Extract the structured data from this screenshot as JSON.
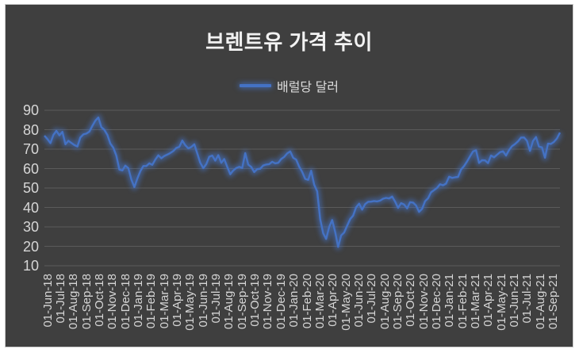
{
  "chart": {
    "title": "브렌트유 가격 추이",
    "legend": {
      "label": "배럴당 달러"
    },
    "colors": {
      "panel_background": "#3F3F3F",
      "panel_border": "#C9C9C9",
      "title_text": "#F2F2F2",
      "axis_text": "#D6D6D6",
      "gridline": "#5B5B5B",
      "series_line": "#4472C4",
      "series_glow": "#4472C4"
    }
  },
  "chart_data": {
    "type": "line",
    "title": "브렌트유 가격 추이",
    "xlabel": "",
    "ylabel": "",
    "ylim": [
      10,
      90
    ],
    "y_ticks": [
      90,
      80,
      70,
      60,
      50,
      40,
      30,
      20,
      10
    ],
    "grid": true,
    "legend_position": "top",
    "x_tick_label_rotation": -90,
    "categories": [
      "01-Jun-18",
      "01-Jul-18",
      "01-Aug-18",
      "01-Sep-18",
      "01-Oct-18",
      "01-Nov-18",
      "01-Dec-18",
      "01-Jan-19",
      "01-Feb-19",
      "01-Mar-19",
      "01-Apr-19",
      "01-May-19",
      "01-Jun-19",
      "01-Jul-19",
      "01-Aug-19",
      "01-Sep-19",
      "01-Oct-19",
      "01-Nov-19",
      "01-Dec-19",
      "01-Jan-20",
      "01-Feb-20",
      "01-Mar-20",
      "01-Apr-20",
      "01-May-20",
      "01-Jun-20",
      "01-Jul-20",
      "01-Aug-20",
      "01-Sep-20",
      "01-Oct-20",
      "01-Nov-20",
      "01-Dec-20",
      "01-Jan-21",
      "01-Feb-21",
      "01-Mar-21",
      "01-Apr-21",
      "01-May-21",
      "01-Jun-21",
      "01-Jul-21",
      "01-Aug-21",
      "01-Sep-21"
    ],
    "series": [
      {
        "name": "배럴당 달러",
        "color": "#4472C4",
        "values": [
          76.9,
          75.2,
          73.1,
          77.3,
          79.4,
          77.1,
          78.9,
          72.5,
          74.3,
          73.2,
          72.1,
          71.4,
          76.0,
          77.6,
          78.0,
          79.0,
          82.0,
          84.6,
          86.3,
          81.3,
          79.9,
          77.3,
          72.9,
          70.7,
          66.6,
          59.5,
          59.0,
          61.5,
          60.2,
          54.4,
          50.5,
          54.9,
          58.6,
          61.3,
          61.3,
          62.7,
          61.9,
          64.6,
          66.8,
          65.3,
          66.5,
          67.2,
          68.0,
          69.0,
          70.6,
          71.2,
          74.4,
          72.0,
          70.4,
          71.1,
          72.5,
          67.8,
          63.0,
          60.2,
          62.3,
          66.1,
          66.7,
          64.1,
          66.9,
          63.0,
          64.9,
          60.9,
          57.1,
          59.0,
          60.3,
          60.9,
          60.3,
          67.9,
          62.0,
          60.8,
          58.2,
          59.7,
          59.9,
          61.6,
          62.1,
          62.3,
          63.5,
          62.7,
          63.0,
          64.9,
          66.0,
          67.8,
          68.8,
          65.5,
          64.6,
          61.0,
          58.3,
          54.7,
          54.2,
          58.9,
          51.7,
          48.3,
          34.0,
          26.7,
          23.8,
          29.9,
          33.5,
          27.4,
          19.7,
          25.6,
          27.1,
          30.6,
          34.0,
          35.8,
          40.1,
          41.9,
          38.9,
          41.7,
          42.9,
          43.0,
          43.3,
          43.1,
          43.5,
          44.5,
          44.9,
          44.6,
          45.6,
          43.0,
          39.8,
          42.2,
          41.5,
          39.5,
          42.7,
          42.5,
          41.0,
          37.7,
          39.3,
          43.2,
          44.7,
          47.8,
          48.9,
          50.1,
          51.9,
          51.4,
          52.3,
          55.8,
          55.2,
          55.5,
          55.7,
          59.5,
          61.3,
          63.6,
          66.3,
          68.8,
          69.4,
          62.9,
          64.3,
          64.2,
          62.8,
          66.7,
          65.8,
          67.1,
          68.4,
          68.9,
          66.7,
          69.5,
          71.5,
          72.6,
          74.0,
          75.9,
          76.0,
          74.3,
          69.1,
          74.2,
          76.2,
          71.3,
          70.9,
          65.6,
          72.8,
          72.7,
          73.7,
          75.5,
          78.5
        ]
      }
    ]
  }
}
